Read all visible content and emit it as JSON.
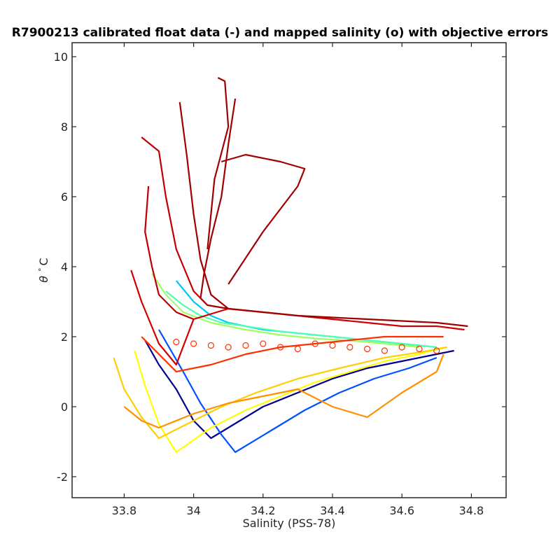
{
  "chart_data": {
    "type": "line",
    "title": "R7900213 calibrated float data (-) and mapped salinity (o) with objective errors",
    "xlabel": "Salinity (PSS-78)",
    "ylabel_symbol": "θ",
    "ylabel_degree": "°",
    "ylabel_unit": "C",
    "xlim": [
      33.65,
      34.9
    ],
    "ylim": [
      -2.6,
      10.4
    ],
    "x_ticks": [
      33.8,
      34,
      34.2,
      34.4,
      34.6,
      34.8
    ],
    "x_tick_labels": [
      "33.8",
      "34",
      "34.2",
      "34.4",
      "34.6",
      "34.8"
    ],
    "y_ticks": [
      -2,
      0,
      2,
      4,
      6,
      8,
      10
    ],
    "y_tick_labels": [
      "-2",
      "0",
      "2",
      "4",
      "6",
      "8",
      "10"
    ],
    "grid": false,
    "colormap": "jet (profile index: early = blue, late = dark red)",
    "colors": [
      "#00008f",
      "#0050ff",
      "#00c8ff",
      "#50ffb0",
      "#a0ff60",
      "#ffff00",
      "#ffd000",
      "#ff9000",
      "#ff3000",
      "#d00000",
      "#a00000"
    ],
    "series": [
      {
        "color": "#00008f",
        "x": [
          33.86,
          33.9,
          33.95,
          34.0,
          34.05,
          34.1,
          34.2,
          34.3,
          34.4,
          34.5,
          34.6,
          34.7,
          34.75
        ],
        "y": [
          1.9,
          1.2,
          0.5,
          -0.4,
          -0.9,
          -0.6,
          0.0,
          0.4,
          0.8,
          1.1,
          1.3,
          1.5,
          1.6
        ]
      },
      {
        "color": "#0050ff",
        "x": [
          33.9,
          33.97,
          34.02,
          34.08,
          34.12,
          34.22,
          34.32,
          34.42,
          34.52,
          34.62,
          34.7
        ],
        "y": [
          2.2,
          1.0,
          0.1,
          -0.8,
          -1.3,
          -0.7,
          -0.1,
          0.4,
          0.8,
          1.1,
          1.4
        ]
      },
      {
        "color": "#00c8ff",
        "x": [
          33.95,
          34.0,
          34.05,
          34.1,
          34.2,
          34.3,
          34.4,
          34.5,
          34.6,
          34.7
        ],
        "y": [
          3.6,
          3.0,
          2.6,
          2.4,
          2.2,
          2.1,
          2.0,
          1.9,
          1.8,
          1.7
        ]
      },
      {
        "color": "#50ffb0",
        "x": [
          33.92,
          33.97,
          34.02,
          34.08,
          34.15,
          34.25,
          34.35,
          34.45,
          34.6,
          34.7
        ],
        "y": [
          3.3,
          2.9,
          2.6,
          2.4,
          2.3,
          2.15,
          2.05,
          1.95,
          1.8,
          1.7
        ]
      },
      {
        "color": "#a0ff60",
        "x": [
          33.88,
          33.92,
          33.97,
          34.05,
          34.15,
          34.25,
          34.35,
          34.5,
          34.65
        ],
        "y": [
          3.8,
          3.2,
          2.7,
          2.4,
          2.2,
          2.05,
          1.95,
          1.85,
          1.7
        ]
      },
      {
        "color": "#ffff00",
        "x": [
          33.83,
          33.86,
          33.9,
          33.95,
          34.05,
          34.15,
          34.25,
          34.35,
          34.45,
          34.55,
          34.65,
          34.72
        ],
        "y": [
          1.6,
          0.6,
          -0.5,
          -1.3,
          -0.6,
          -0.1,
          0.3,
          0.7,
          1.0,
          1.3,
          1.5,
          1.7
        ]
      },
      {
        "color": "#ffd000",
        "x": [
          33.77,
          33.8,
          33.85,
          33.9,
          33.98,
          34.08,
          34.18,
          34.3,
          34.42,
          34.55,
          34.68,
          34.73
        ],
        "y": [
          1.4,
          0.5,
          -0.3,
          -0.9,
          -0.5,
          0.0,
          0.4,
          0.8,
          1.1,
          1.4,
          1.6,
          1.7
        ]
      },
      {
        "color": "#ff9000",
        "x": [
          33.8,
          33.85,
          33.9,
          34.0,
          34.1,
          34.2,
          34.3,
          34.4,
          34.5,
          34.6,
          34.7,
          34.72
        ],
        "y": [
          0.0,
          -0.4,
          -0.6,
          -0.2,
          0.1,
          0.3,
          0.5,
          0.0,
          -0.3,
          0.4,
          1.0,
          1.5
        ]
      },
      {
        "color": "#ff3000",
        "x": [
          33.85,
          33.9,
          33.95,
          34.05,
          34.15,
          34.25,
          34.35,
          34.45,
          34.55,
          34.65,
          34.72
        ],
        "y": [
          2.0,
          1.5,
          1.0,
          1.2,
          1.5,
          1.7,
          1.8,
          1.9,
          2.0,
          2.0,
          2.0
        ]
      },
      {
        "color": "#d00000",
        "x": [
          33.82,
          33.85,
          33.9,
          33.95,
          34.0,
          34.1,
          34.2,
          34.3,
          34.4,
          34.5,
          34.6,
          34.7,
          34.78
        ],
        "y": [
          3.9,
          3.0,
          1.8,
          1.2,
          2.5,
          2.8,
          2.7,
          2.6,
          2.5,
          2.4,
          2.3,
          2.3,
          2.2
        ]
      },
      {
        "color": "#a00000",
        "x": [
          34.12,
          34.1,
          34.08,
          34.05,
          34.03,
          34.02,
          34.04,
          34.1,
          34.2,
          34.3,
          34.4,
          34.5,
          34.6,
          34.7,
          34.79
        ],
        "y": [
          8.8,
          7.5,
          6.0,
          4.8,
          3.8,
          3.1,
          2.9,
          2.8,
          2.7,
          2.6,
          2.55,
          2.5,
          2.45,
          2.4,
          2.3
        ]
      },
      {
        "color": "#a00000",
        "x": [
          33.96,
          33.98,
          34.0,
          34.02,
          34.05,
          34.1
        ],
        "y": [
          8.7,
          7.2,
          5.5,
          4.2,
          3.2,
          2.8
        ]
      },
      {
        "color": "#a00000",
        "x": [
          34.08,
          34.15,
          34.25,
          34.32,
          34.3,
          34.2,
          34.1
        ],
        "y": [
          7.0,
          7.2,
          7.0,
          6.8,
          6.3,
          5.0,
          3.5
        ]
      },
      {
        "color": "#a00000",
        "x": [
          34.07,
          34.09,
          34.1,
          34.06,
          34.04
        ],
        "y": [
          9.4,
          9.3,
          8.0,
          6.5,
          4.5
        ]
      },
      {
        "color": "#c00000",
        "x": [
          33.85,
          33.9,
          33.92,
          33.95,
          34.0,
          34.04
        ],
        "y": [
          7.7,
          7.3,
          6.0,
          4.5,
          3.3,
          2.9
        ]
      },
      {
        "color": "#c00000",
        "x": [
          33.87,
          33.86,
          33.88,
          33.9,
          33.95,
          34.0
        ],
        "y": [
          6.3,
          5.0,
          4.0,
          3.2,
          2.7,
          2.5
        ]
      }
    ],
    "mapped_points": {
      "color": "#ff3000",
      "x": [
        33.95,
        34.0,
        34.05,
        34.1,
        34.15,
        34.2,
        34.25,
        34.3,
        34.35,
        34.4,
        34.45,
        34.5,
        34.55,
        34.6,
        34.65,
        34.7
      ],
      "y": [
        1.85,
        1.8,
        1.75,
        1.7,
        1.75,
        1.8,
        1.7,
        1.65,
        1.8,
        1.75,
        1.7,
        1.65,
        1.6,
        1.7,
        1.65,
        1.6
      ]
    }
  }
}
